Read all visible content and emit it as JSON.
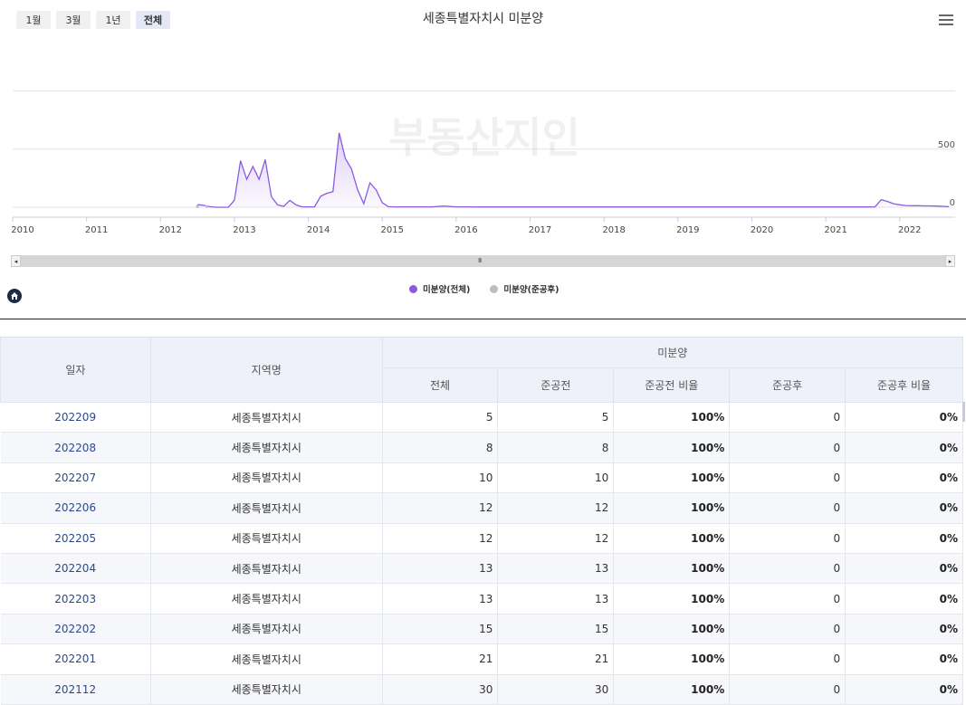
{
  "range_buttons": [
    "1월",
    "3월",
    "1년",
    "전체"
  ],
  "active_range": "전체",
  "chart_data": {
    "type": "area",
    "title": "세종특별자치시 미분양",
    "xlabel": "",
    "ylabel": "",
    "x_ticks": [
      "2010",
      "2011",
      "2012",
      "2013",
      "2014",
      "2015",
      "2016",
      "2017",
      "2018",
      "2019",
      "2020",
      "2021",
      "2022"
    ],
    "y_ticks": [
      0,
      500
    ],
    "grid": true,
    "legend_position": "bottom",
    "colors": {
      "total": "#8a5be0",
      "after": "#bdbdbd"
    },
    "series": [
      {
        "name": "미분양(전체)",
        "points": [
          [
            "2012-07",
            22
          ],
          [
            "2012-08",
            16
          ],
          [
            "2012-09",
            5
          ],
          [
            "2012-10",
            0
          ],
          [
            "2012-11",
            0
          ],
          [
            "2012-12",
            0
          ],
          [
            "2013-01",
            60
          ],
          [
            "2013-02",
            400
          ],
          [
            "2013-03",
            240
          ],
          [
            "2013-04",
            350
          ],
          [
            "2013-05",
            240
          ],
          [
            "2013-06",
            410
          ],
          [
            "2013-07",
            90
          ],
          [
            "2013-08",
            20
          ],
          [
            "2013-09",
            8
          ],
          [
            "2013-10",
            60
          ],
          [
            "2013-11",
            20
          ],
          [
            "2013-12",
            3
          ],
          [
            "2014-01",
            3
          ],
          [
            "2014-02",
            3
          ],
          [
            "2014-03",
            95
          ],
          [
            "2014-04",
            120
          ],
          [
            "2014-05",
            135
          ],
          [
            "2014-06",
            640
          ],
          [
            "2014-07",
            420
          ],
          [
            "2014-08",
            330
          ],
          [
            "2014-09",
            150
          ],
          [
            "2014-10",
            30
          ],
          [
            "2014-11",
            210
          ],
          [
            "2014-12",
            150
          ],
          [
            "2015-01",
            40
          ],
          [
            "2015-02",
            5
          ],
          [
            "2015-03",
            3
          ],
          [
            "2015-04",
            3
          ],
          [
            "2015-06",
            3
          ],
          [
            "2015-09",
            3
          ],
          [
            "2015-11",
            10
          ],
          [
            "2016-01",
            3
          ],
          [
            "2016-03",
            3
          ],
          [
            "2016-06",
            2
          ],
          [
            "2017-01",
            2
          ],
          [
            "2018-01",
            2
          ],
          [
            "2019-01",
            2
          ],
          [
            "2020-01",
            2
          ],
          [
            "2021-01",
            2
          ],
          [
            "2021-07",
            2
          ],
          [
            "2021-09",
            3
          ],
          [
            "2021-10",
            65
          ],
          [
            "2021-11",
            50
          ],
          [
            "2021-12",
            30
          ],
          [
            "2022-01",
            21
          ],
          [
            "2022-02",
            15
          ],
          [
            "2022-03",
            13
          ],
          [
            "2022-04",
            13
          ],
          [
            "2022-05",
            12
          ],
          [
            "2022-06",
            12
          ],
          [
            "2022-07",
            10
          ],
          [
            "2022-08",
            8
          ],
          [
            "2022-09",
            5
          ]
        ]
      },
      {
        "name": "미분양(준공후)",
        "points": [
          [
            "2012-07",
            6
          ],
          [
            "2012-08",
            6
          ]
        ]
      }
    ]
  },
  "watermark": "부동산지인",
  "table": {
    "headers": {
      "date": "일자",
      "region": "지역명",
      "group": "미분양",
      "total": "전체",
      "before": "준공전",
      "before_ratio": "준공전 비율",
      "after": "준공후",
      "after_ratio": "준공후 비율"
    },
    "rows": [
      {
        "date": "202209",
        "region": "세종특별자치시",
        "total": "5",
        "before": "5",
        "before_ratio": "100%",
        "after": "0",
        "after_ratio": "0%"
      },
      {
        "date": "202208",
        "region": "세종특별자치시",
        "total": "8",
        "before": "8",
        "before_ratio": "100%",
        "after": "0",
        "after_ratio": "0%"
      },
      {
        "date": "202207",
        "region": "세종특별자치시",
        "total": "10",
        "before": "10",
        "before_ratio": "100%",
        "after": "0",
        "after_ratio": "0%"
      },
      {
        "date": "202206",
        "region": "세종특별자치시",
        "total": "12",
        "before": "12",
        "before_ratio": "100%",
        "after": "0",
        "after_ratio": "0%"
      },
      {
        "date": "202205",
        "region": "세종특별자치시",
        "total": "12",
        "before": "12",
        "before_ratio": "100%",
        "after": "0",
        "after_ratio": "0%"
      },
      {
        "date": "202204",
        "region": "세종특별자치시",
        "total": "13",
        "before": "13",
        "before_ratio": "100%",
        "after": "0",
        "after_ratio": "0%"
      },
      {
        "date": "202203",
        "region": "세종특별자치시",
        "total": "13",
        "before": "13",
        "before_ratio": "100%",
        "after": "0",
        "after_ratio": "0%"
      },
      {
        "date": "202202",
        "region": "세종특별자치시",
        "total": "15",
        "before": "15",
        "before_ratio": "100%",
        "after": "0",
        "after_ratio": "0%"
      },
      {
        "date": "202201",
        "region": "세종특별자치시",
        "total": "21",
        "before": "21",
        "before_ratio": "100%",
        "after": "0",
        "after_ratio": "0%"
      },
      {
        "date": "202112",
        "region": "세종특별자치시",
        "total": "30",
        "before": "30",
        "before_ratio": "100%",
        "after": "0",
        "after_ratio": "0%"
      }
    ]
  }
}
